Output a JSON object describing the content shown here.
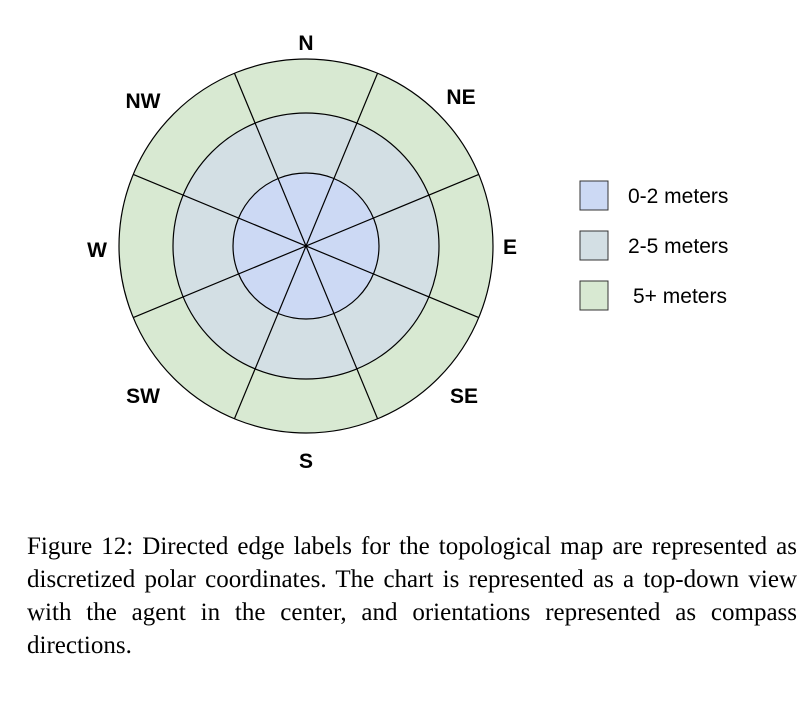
{
  "diagram": {
    "rings": [
      {
        "label": "0-2 meters",
        "color": "#ccd9f4"
      },
      {
        "label": "2-5 meters",
        "color": "#d3dfe4"
      },
      {
        "label": "5+ meters",
        "color": "#d8e9d2"
      }
    ],
    "directions": [
      "N",
      "NE",
      "E",
      "SE",
      "S",
      "SW",
      "W",
      "NW"
    ]
  },
  "caption": "Figure 12: Directed edge labels for the topological map are represented as discretized polar coordinates. The chart is represented as a top-down view with the agent in the center, and orientations represented as compass directions."
}
